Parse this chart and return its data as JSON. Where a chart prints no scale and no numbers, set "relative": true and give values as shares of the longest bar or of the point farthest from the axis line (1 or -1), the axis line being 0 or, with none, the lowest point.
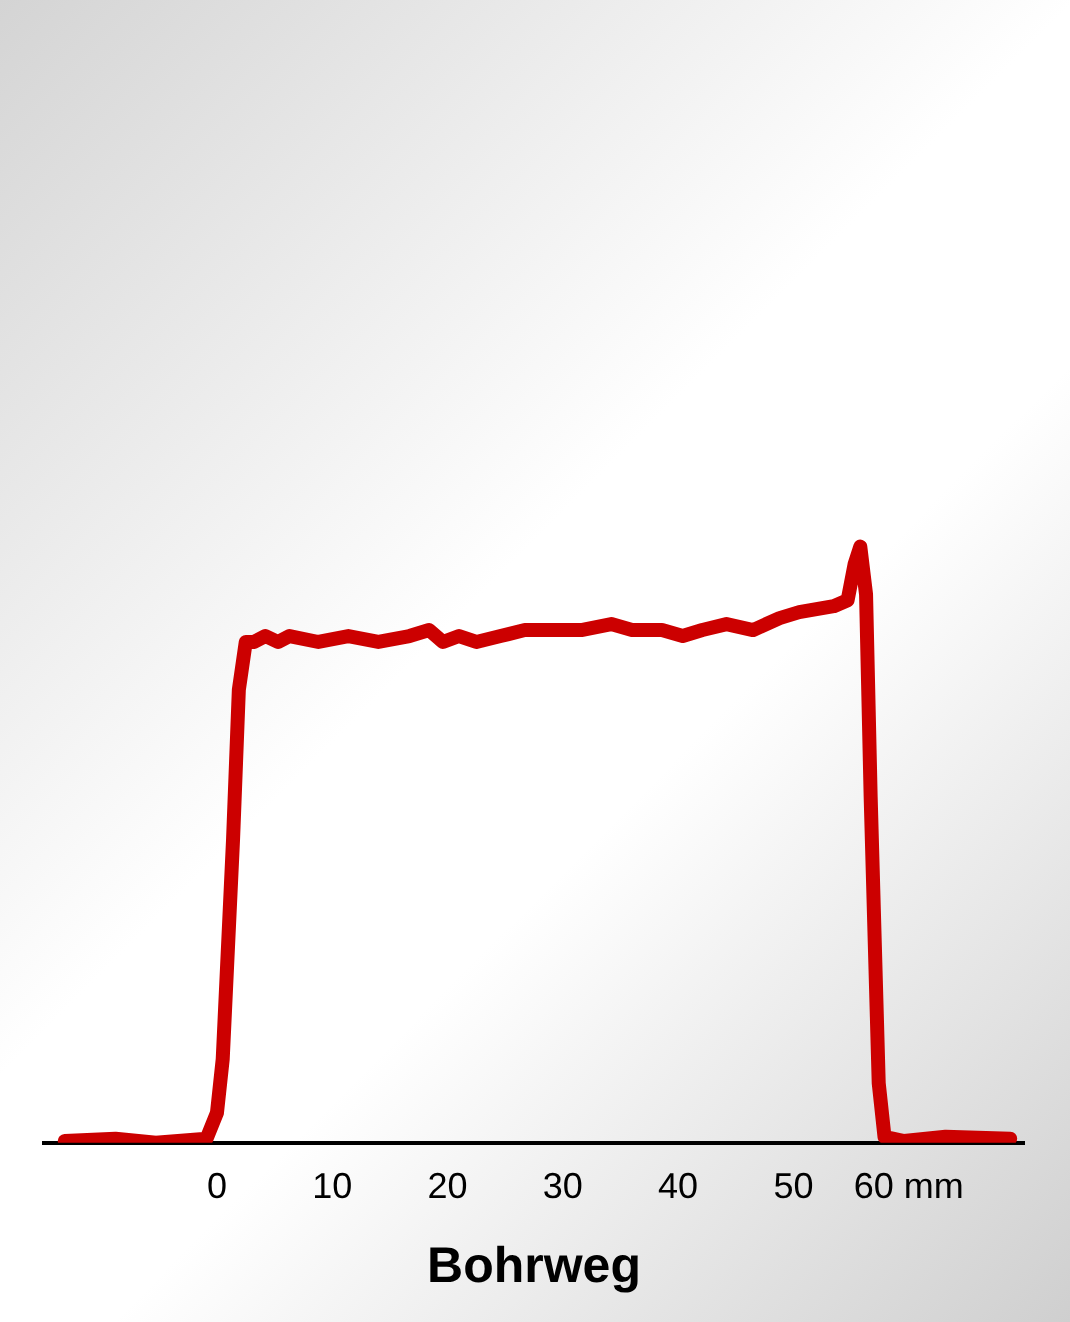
{
  "chart_data": {
    "type": "line",
    "xlabel": "Bohrweg",
    "relative": true,
    "grid": false,
    "legend": false,
    "tick_labels": "x",
    "marker": "none",
    "line_style": "solid",
    "xlim": [
      -15,
      70
    ],
    "xticks": [
      0,
      10,
      20,
      30,
      40,
      50,
      {
        "value": 60,
        "label": "60 mm"
      }
    ],
    "series": [
      {
        "color": "#cc0000",
        "x": [
          -13.2,
          -8.8,
          -5.3,
          -0.9,
          0,
          0.5,
          1.4,
          1.9,
          2.5,
          3.2,
          4.2,
          5.3,
          6.3,
          8.8,
          11.4,
          14.0,
          16.7,
          18.4,
          19.6,
          21.0,
          22.5,
          24.6,
          26.7,
          31.6,
          34.2,
          36.0,
          38.6,
          40.4,
          42.1,
          44.2,
          46.5,
          48.8,
          50.5,
          53.5,
          54.7,
          55.3,
          55.8,
          56.3,
          56.7,
          57.4,
          57.9,
          59.6,
          63.2,
          68.8
        ],
        "values": [
          0.003,
          0.007,
          0,
          0.007,
          0.05,
          0.14,
          0.51,
          0.76,
          0.84,
          0.84,
          0.85,
          0.84,
          0.85,
          0.84,
          0.85,
          0.84,
          0.85,
          0.86,
          0.84,
          0.85,
          0.84,
          0.85,
          0.86,
          0.86,
          0.87,
          0.86,
          0.86,
          0.85,
          0.86,
          0.87,
          0.86,
          0.88,
          0.89,
          0.9,
          0.91,
          0.97,
          1,
          0.92,
          0.58,
          0.1,
          0.01,
          0.003,
          0.01,
          0.007
        ]
      }
    ]
  }
}
